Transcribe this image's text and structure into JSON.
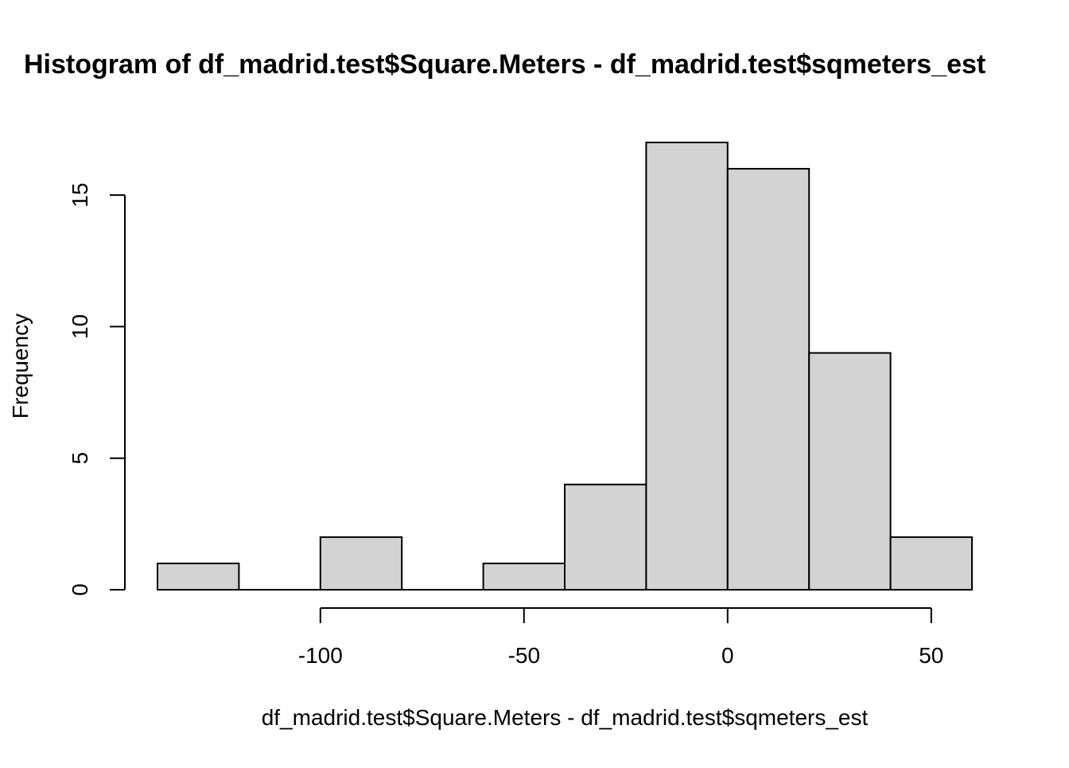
{
  "chart_data": {
    "type": "bar",
    "title": "Histogram of df_madrid.test$Square.Meters - df_madrid.test$sqmeters_est",
    "xlabel": "df_madrid.test$Square.Meters - df_madrid.test$sqmeters_est",
    "ylabel": "Frequency",
    "bins": [
      {
        "start": -140,
        "end": -120,
        "count": 1
      },
      {
        "start": -120,
        "end": -100,
        "count": 0
      },
      {
        "start": -100,
        "end": -80,
        "count": 2
      },
      {
        "start": -80,
        "end": -60,
        "count": 0
      },
      {
        "start": -60,
        "end": -40,
        "count": 1
      },
      {
        "start": -40,
        "end": -20,
        "count": 4
      },
      {
        "start": -20,
        "end": 0,
        "count": 17
      },
      {
        "start": 0,
        "end": 20,
        "count": 16
      },
      {
        "start": 20,
        "end": 40,
        "count": 9
      },
      {
        "start": 40,
        "end": 60,
        "count": 2
      }
    ],
    "x_ticks": [
      -100,
      -50,
      0,
      50
    ],
    "x_tick_labels": [
      "-100",
      "-50",
      "0",
      "50"
    ],
    "y_ticks": [
      0,
      5,
      10,
      15
    ],
    "y_tick_labels": [
      "0",
      "5",
      "10",
      "15"
    ],
    "xlim": [
      -140,
      60
    ],
    "ylim": [
      0,
      17
    ],
    "bar_color": "#d3d3d3",
    "edge_color": "#000000",
    "grid": false,
    "legend": "none"
  }
}
